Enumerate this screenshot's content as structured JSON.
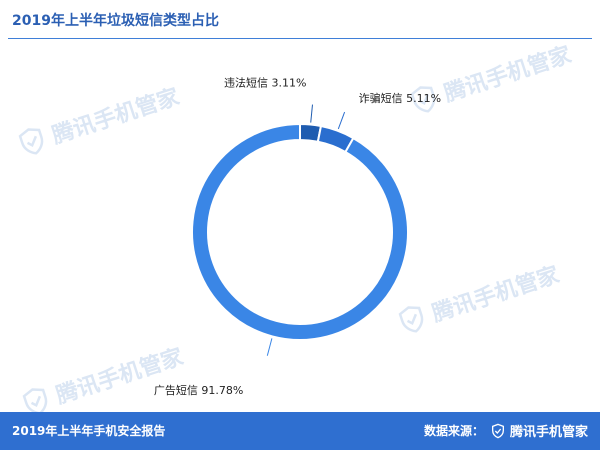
{
  "header": {
    "title": "2019年上半年垃圾短信类型占比"
  },
  "footer": {
    "report_name": "2019年上半年手机安全报告",
    "source_label": "数据来源：",
    "source_brand": "腾讯手机管家",
    "source_icon": "shield-check-icon"
  },
  "watermark": {
    "text": "腾讯手机管家",
    "icon": "shield-check-icon"
  },
  "colors": {
    "accent": "#2f6fd0",
    "title": "#2b5fb3",
    "watermark": "#dbe6f4",
    "slice_dark": "#1f5cb0",
    "slice_medium": "#2a6ecf",
    "slice_light": "#3a86e6"
  },
  "chart_data": {
    "type": "pie",
    "style": "donut",
    "title": "2019年上半年垃圾短信类型占比",
    "series": [
      {
        "name": "违法短信",
        "value": 3.11,
        "label": "违法短信 3.11%",
        "color": "#1f5cb0"
      },
      {
        "name": "诈骗短信",
        "value": 5.11,
        "label": "诈骗短信 5.11%",
        "color": "#2a6ecf"
      },
      {
        "name": "广告短信",
        "value": 91.78,
        "label": "广告短信 91.78%",
        "color": "#3a86e6"
      }
    ],
    "unit": "%",
    "legend": "none",
    "labels_position": "outside-with-leader-lines"
  }
}
